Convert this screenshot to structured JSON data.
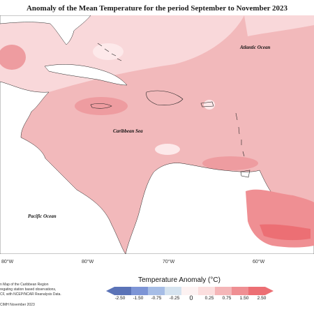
{
  "title": "Anomaly of the Mean Temperature for the period September to November 2023",
  "labels": {
    "atlantic": "Atlantic Ocean",
    "caribbean": "Caribbean Sea",
    "pacific": "Pacific Ocean"
  },
  "longitudes": [
    "80°W",
    "80°W",
    "70°W",
    "60°W"
  ],
  "legend": {
    "title": "Temperature Anomaly (°C)",
    "ticks": [
      "-2.50",
      "-1.50",
      "-0.75",
      "-0.25",
      "0",
      "0.25",
      "0.75",
      "1.50",
      "2.50"
    ],
    "colors": [
      "#5b73b7",
      "#7d95d6",
      "#a6bde6",
      "#d5e3ef",
      "#ffffff",
      "#fbdede",
      "#f4b6b8",
      "#ef8f93",
      "#ec6f74"
    ]
  },
  "notes": [
    "n Map of the Caribbean Region",
    "regating station based observations,",
    "CF, with NCEP/NCAR Reanalysis Data.",
    "CIMH November 2023"
  ],
  "colors": {
    "base_anomaly": "#f2b9bb",
    "light_anomaly": "#f9d8da",
    "strong_anomaly": "#ee9ca0",
    "very_light": "#fde9ea"
  }
}
